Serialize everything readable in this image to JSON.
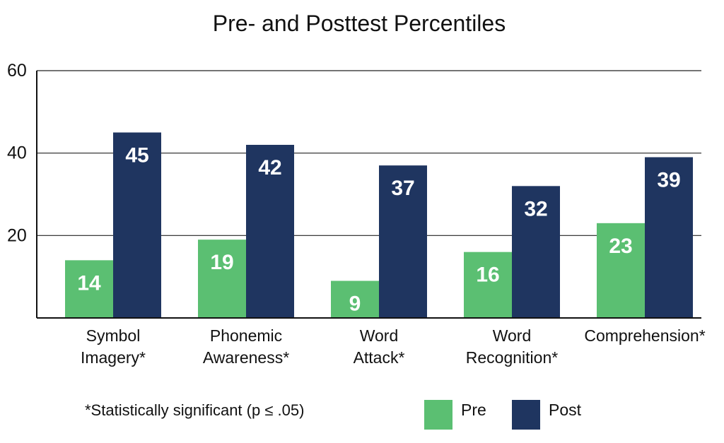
{
  "chart_data": {
    "type": "bar",
    "title": "Pre- and Posttest Percentiles",
    "categories": [
      [
        "Symbol",
        "Imagery*"
      ],
      [
        "Phonemic",
        "Awareness*"
      ],
      [
        "Word",
        "Attack*"
      ],
      [
        "Word",
        "Recognition*"
      ],
      [
        "Comprehension*"
      ]
    ],
    "series": [
      {
        "name": "Pre",
        "color": "#5bbf72",
        "values": [
          14,
          19,
          9,
          16,
          23
        ]
      },
      {
        "name": "Post",
        "color": "#1f3560",
        "values": [
          45,
          42,
          37,
          32,
          39
        ]
      }
    ],
    "ylim": [
      0,
      60
    ],
    "yticks": [
      20,
      40,
      60
    ],
    "grid": true,
    "legend": "bottom-right",
    "footnote": "*Statistically significant (p ≤ .05)"
  }
}
